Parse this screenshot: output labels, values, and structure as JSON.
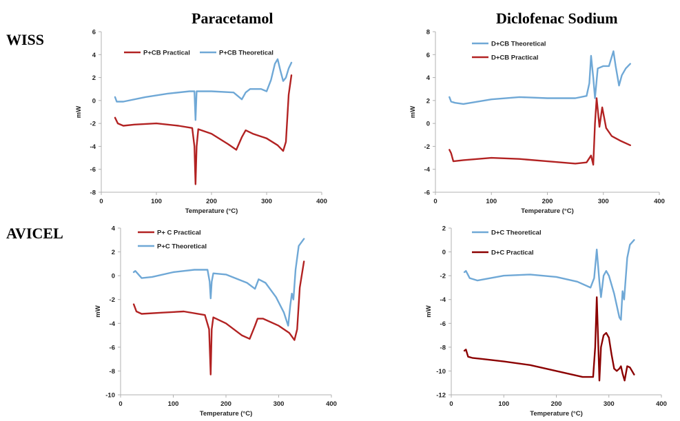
{
  "titles": {
    "left": "Paracetamol",
    "right": "Diclofenac Sodium"
  },
  "rows": {
    "top": "WISS",
    "bottom": "AVICEL"
  },
  "colors": {
    "theoretical": "#6fa8d6",
    "practical": "#b22222",
    "practical_dark": "#8b0000",
    "axis": "#b0b0b0"
  },
  "chart_data": [
    {
      "type": "line",
      "panel": "paracetamol-wiss",
      "xlabel": "Temperature (°C)",
      "ylabel": "mW",
      "xlim": [
        0,
        400
      ],
      "ylim": [
        -8,
        6
      ],
      "xticks": [
        0,
        100,
        200,
        300,
        400
      ],
      "yticks": [
        -8,
        -6,
        -4,
        -2,
        0,
        2,
        4,
        6
      ],
      "legend_placement": "top",
      "series": [
        {
          "name": "P+CB Practical",
          "color": "#b22222",
          "x": [
            25,
            30,
            40,
            60,
            100,
            140,
            165,
            169,
            171,
            173,
            176,
            200,
            230,
            245,
            255,
            262,
            275,
            300,
            320,
            330,
            335,
            340,
            345
          ],
          "y": [
            -1.5,
            -2.0,
            -2.2,
            -2.1,
            -2.0,
            -2.2,
            -2.4,
            -4.0,
            -7.3,
            -4.0,
            -2.5,
            -2.9,
            -3.8,
            -4.3,
            -3.2,
            -2.6,
            -2.9,
            -3.3,
            -3.9,
            -4.4,
            -3.6,
            0.5,
            2.2
          ]
        },
        {
          "name": "P+CB Theoretical",
          "color": "#6fa8d6",
          "x": [
            25,
            28,
            40,
            80,
            120,
            160,
            169,
            171,
            173,
            176,
            200,
            240,
            255,
            262,
            270,
            290,
            300,
            308,
            315,
            320,
            325,
            330,
            335,
            340,
            345
          ],
          "y": [
            0.3,
            -0.1,
            -0.1,
            0.3,
            0.6,
            0.8,
            0.8,
            -1.7,
            0.8,
            0.8,
            0.8,
            0.7,
            0.1,
            0.7,
            1.0,
            1.0,
            0.8,
            1.8,
            3.2,
            3.6,
            2.6,
            1.7,
            2.0,
            2.8,
            3.3
          ]
        }
      ]
    },
    {
      "type": "line",
      "panel": "diclofenac-wiss",
      "xlabel": "Temperature (°C)",
      "ylabel": "mW",
      "xlim": [
        0,
        400
      ],
      "ylim": [
        -6,
        8
      ],
      "xticks": [
        0,
        100,
        200,
        300,
        400
      ],
      "yticks": [
        -6,
        -4,
        -2,
        0,
        2,
        4,
        6,
        8
      ],
      "legend_placement": "top",
      "series": [
        {
          "name": "D+CB Theoretical",
          "color": "#6fa8d6",
          "x": [
            25,
            28,
            35,
            50,
            100,
            150,
            200,
            250,
            270,
            275,
            278,
            282,
            285,
            290,
            300,
            310,
            318,
            322,
            328,
            333,
            340,
            348
          ],
          "y": [
            2.3,
            1.9,
            1.8,
            1.7,
            2.1,
            2.3,
            2.2,
            2.2,
            2.4,
            3.5,
            5.9,
            4.0,
            2.2,
            4.8,
            5.0,
            5.0,
            6.3,
            5.0,
            3.3,
            4.2,
            4.8,
            5.2
          ]
        },
        {
          "name": "D+CB Practical",
          "color": "#b22222",
          "x": [
            25,
            28,
            32,
            50,
            100,
            150,
            200,
            250,
            270,
            278,
            282,
            285,
            288,
            293,
            298,
            305,
            315,
            330,
            348
          ],
          "y": [
            -2.3,
            -2.6,
            -3.3,
            -3.2,
            -3.0,
            -3.1,
            -3.3,
            -3.5,
            -3.4,
            -2.8,
            -3.6,
            0.0,
            2.2,
            -0.3,
            1.4,
            -0.4,
            -1.1,
            -1.5,
            -1.9
          ]
        }
      ]
    },
    {
      "type": "line",
      "panel": "paracetamol-avicel",
      "xlabel": "Temperature (°C)",
      "ylabel": "mW",
      "xlim": [
        0,
        400
      ],
      "ylim": [
        -10,
        4
      ],
      "xticks": [
        0,
        100,
        200,
        300,
        400
      ],
      "yticks": [
        -10,
        -8,
        -6,
        -4,
        -2,
        0,
        2,
        4
      ],
      "legend_placement": "top",
      "series": [
        {
          "name": "P+ C Practical",
          "color": "#b22222",
          "x": [
            25,
            30,
            40,
            80,
            120,
            160,
            168,
            171,
            173,
            176,
            200,
            230,
            245,
            255,
            260,
            270,
            300,
            320,
            330,
            335,
            340,
            348
          ],
          "y": [
            -2.4,
            -3.0,
            -3.2,
            -3.1,
            -3.0,
            -3.3,
            -4.5,
            -8.3,
            -4.5,
            -3.5,
            -4.0,
            -5.0,
            -5.3,
            -4.2,
            -3.6,
            -3.6,
            -4.2,
            -4.8,
            -5.4,
            -4.5,
            -1.0,
            1.2
          ]
        },
        {
          "name": "P+C Theoretical",
          "color": "#6fa8d6",
          "x": [
            25,
            28,
            40,
            60,
            100,
            140,
            165,
            169,
            171,
            173,
            176,
            200,
            240,
            255,
            262,
            275,
            295,
            310,
            318,
            322,
            325,
            328,
            332,
            338,
            348
          ],
          "y": [
            0.3,
            0.4,
            -0.2,
            -0.1,
            0.3,
            0.5,
            0.5,
            -0.5,
            -1.9,
            -0.5,
            0.2,
            0.1,
            -0.6,
            -1.1,
            -0.3,
            -0.6,
            -1.8,
            -3.1,
            -4.2,
            -2.5,
            -1.5,
            -2.0,
            0.5,
            2.5,
            3.1
          ]
        }
      ]
    },
    {
      "type": "line",
      "panel": "diclofenac-avicel",
      "xlabel": "Temperature (°C)",
      "ylabel": "mW",
      "xlim": [
        0,
        400
      ],
      "ylim": [
        -12,
        2
      ],
      "xticks": [
        0,
        100,
        200,
        300,
        400
      ],
      "yticks": [
        -12,
        -10,
        -8,
        -6,
        -4,
        -2,
        0,
        2
      ],
      "legend_placement": "top",
      "series": [
        {
          "name": "D+C Theoretical",
          "color": "#6fa8d6",
          "x": [
            25,
            28,
            35,
            50,
            100,
            150,
            200,
            240,
            265,
            272,
            277,
            282,
            285,
            290,
            295,
            300,
            310,
            320,
            323,
            326,
            329,
            335,
            340,
            348
          ],
          "y": [
            -1.7,
            -1.6,
            -2.2,
            -2.4,
            -2.0,
            -1.9,
            -2.1,
            -2.5,
            -3.0,
            -2.2,
            0.2,
            -2.5,
            -3.8,
            -2.0,
            -1.6,
            -2.0,
            -3.5,
            -5.5,
            -5.7,
            -3.3,
            -4.0,
            -0.5,
            0.6,
            1.0
          ]
        },
        {
          "name": "D+C Practical",
          "color": "#8b0000",
          "x": [
            25,
            28,
            32,
            40,
            60,
            100,
            150,
            200,
            250,
            270,
            274,
            277,
            280,
            282,
            285,
            290,
            295,
            300,
            305,
            310,
            315,
            320,
            323,
            326,
            330,
            335,
            340,
            348
          ],
          "y": [
            -8.3,
            -8.2,
            -8.8,
            -8.9,
            -9.0,
            -9.2,
            -9.5,
            -10.0,
            -10.5,
            -10.5,
            -8.0,
            -3.8,
            -8.0,
            -10.8,
            -8.0,
            -7.0,
            -6.8,
            -7.2,
            -8.6,
            -9.8,
            -10.0,
            -9.8,
            -9.6,
            -10.2,
            -10.8,
            -9.6,
            -9.7,
            -10.3
          ]
        }
      ]
    }
  ]
}
